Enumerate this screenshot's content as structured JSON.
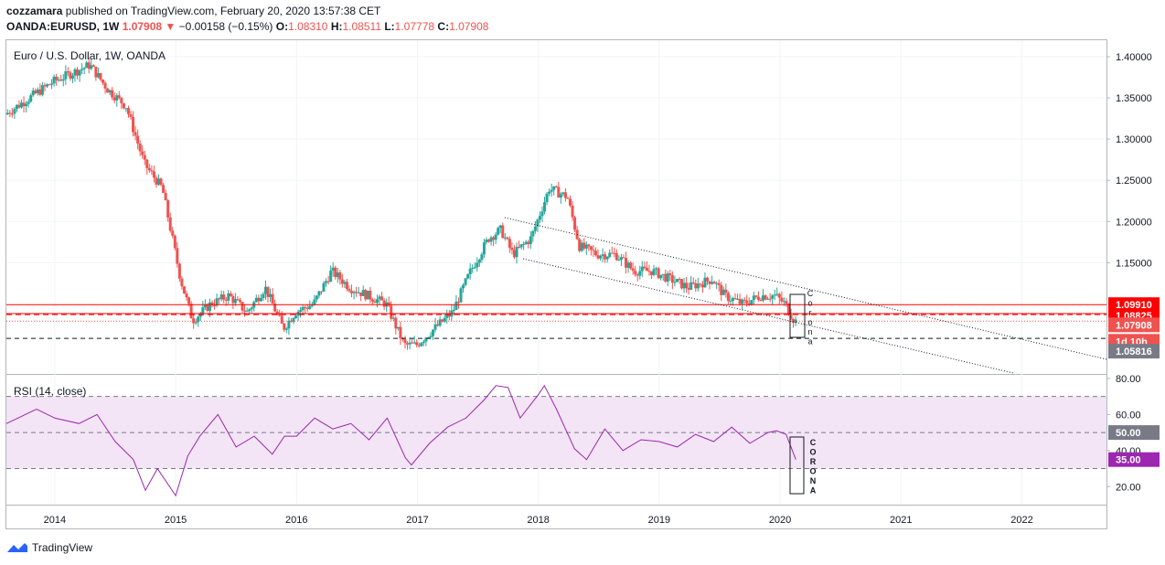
{
  "header": {
    "author": "cozzamara",
    "published_text": "published on TradingView.com, February 20, 2020 13:57:38 CET",
    "symbol": "OANDA:EURUSD, 1W",
    "last": "1.07908",
    "change": "−0.00158 (−0.15%)",
    "o_label": "O:",
    "o_value": "1.08310",
    "h_label": "H:",
    "h_value": "1.08511",
    "l_label": "L:",
    "l_value": "1.07778",
    "c_label": "C:",
    "c_value": "1.07908"
  },
  "footer": {
    "brand": "TradingView"
  },
  "colors": {
    "up": "#26a69a",
    "down": "#ef5350",
    "rsi": "#9c27b0",
    "rsi_band": "#f3e5f5"
  },
  "chart_data": [
    {
      "type": "candlestick",
      "title": "Euro / U.S. Dollar, 1W, OANDA",
      "ylim": [
        1.015,
        1.42
      ],
      "y_ticks": [
        "1.40000",
        "1.35000",
        "1.30000",
        "1.25000",
        "1.20000",
        "1.15000"
      ],
      "x_ticks": [
        "2014",
        "2015",
        "2016",
        "2017",
        "2018",
        "2019",
        "2020",
        "2021",
        "2022"
      ],
      "xlim": [
        2013.6,
        2022.7
      ],
      "price_path": [
        [
          2013.6,
          1.33
        ],
        [
          2013.8,
          1.35
        ],
        [
          2014.0,
          1.37
        ],
        [
          2014.15,
          1.38
        ],
        [
          2014.3,
          1.39
        ],
        [
          2014.45,
          1.36
        ],
        [
          2014.6,
          1.34
        ],
        [
          2014.75,
          1.27
        ],
        [
          2014.9,
          1.24
        ],
        [
          2015.05,
          1.13
        ],
        [
          2015.15,
          1.08
        ],
        [
          2015.3,
          1.1
        ],
        [
          2015.45,
          1.11
        ],
        [
          2015.6,
          1.09
        ],
        [
          2015.75,
          1.12
        ],
        [
          2015.9,
          1.07
        ],
        [
          2016.0,
          1.09
        ],
        [
          2016.15,
          1.1
        ],
        [
          2016.3,
          1.14
        ],
        [
          2016.45,
          1.12
        ],
        [
          2016.6,
          1.11
        ],
        [
          2016.75,
          1.1
        ],
        [
          2016.9,
          1.05
        ],
        [
          2017.0,
          1.05
        ],
        [
          2017.15,
          1.07
        ],
        [
          2017.3,
          1.09
        ],
        [
          2017.45,
          1.14
        ],
        [
          2017.6,
          1.18
        ],
        [
          2017.7,
          1.19
        ],
        [
          2017.8,
          1.16
        ],
        [
          2017.95,
          1.18
        ],
        [
          2018.1,
          1.24
        ],
        [
          2018.25,
          1.23
        ],
        [
          2018.35,
          1.17
        ],
        [
          2018.5,
          1.16
        ],
        [
          2018.65,
          1.16
        ],
        [
          2018.8,
          1.14
        ],
        [
          2018.95,
          1.14
        ],
        [
          2019.1,
          1.13
        ],
        [
          2019.25,
          1.12
        ],
        [
          2019.45,
          1.13
        ],
        [
          2019.55,
          1.11
        ],
        [
          2019.7,
          1.1
        ],
        [
          2019.85,
          1.11
        ],
        [
          2019.97,
          1.11
        ],
        [
          2020.05,
          1.1
        ],
        [
          2020.13,
          1.079
        ]
      ],
      "horizontal_levels": [
        "1.09910",
        "1.08825",
        "1.07908",
        "1.05816"
      ],
      "price_labels": [
        {
          "text": "1.09910",
          "bg": "#ff0000"
        },
        {
          "text": "1.08825",
          "bg": "#ff0000"
        },
        {
          "text": "1.07908",
          "bg": "#ef5350"
        },
        {
          "text": "1d 10h",
          "bg": "#ef5350"
        },
        {
          "text": "1.05816",
          "bg": "#787b86"
        }
      ],
      "annotation": "C o r o n a"
    },
    {
      "type": "line",
      "title": "RSI (14, close)",
      "ylim": [
        10,
        82
      ],
      "y_ticks": [
        "80.00",
        "60.00",
        "40.00",
        "20.00"
      ],
      "band": [
        30,
        70
      ],
      "levels": [
        50,
        35
      ],
      "level_labels": [
        {
          "text": "50.00",
          "bg": "#787b86"
        },
        {
          "text": "35.00",
          "bg": "#9c27b0"
        }
      ],
      "x": [
        2013.6,
        2013.85,
        2014.0,
        2014.2,
        2014.35,
        2014.5,
        2014.65,
        2014.75,
        2014.85,
        2015.0,
        2015.1,
        2015.2,
        2015.35,
        2015.5,
        2015.65,
        2015.8,
        2015.9,
        2016.0,
        2016.15,
        2016.3,
        2016.45,
        2016.6,
        2016.75,
        2016.9,
        2016.95,
        2017.1,
        2017.25,
        2017.4,
        2017.55,
        2017.65,
        2017.75,
        2017.85,
        2018.0,
        2018.05,
        2018.15,
        2018.3,
        2018.4,
        2018.55,
        2018.7,
        2018.85,
        2019.0,
        2019.15,
        2019.3,
        2019.45,
        2019.6,
        2019.75,
        2019.9,
        2019.97,
        2020.05,
        2020.13
      ],
      "values": [
        55,
        63,
        58,
        55,
        60,
        45,
        35,
        18,
        30,
        15,
        37,
        48,
        60,
        42,
        48,
        38,
        48,
        48,
        58,
        52,
        55,
        46,
        58,
        36,
        32,
        44,
        53,
        58,
        68,
        76,
        75,
        58,
        71,
        76,
        63,
        41,
        35,
        52,
        40,
        46,
        45,
        42,
        49,
        45,
        53,
        44,
        50,
        51,
        49,
        35
      ]
    }
  ]
}
